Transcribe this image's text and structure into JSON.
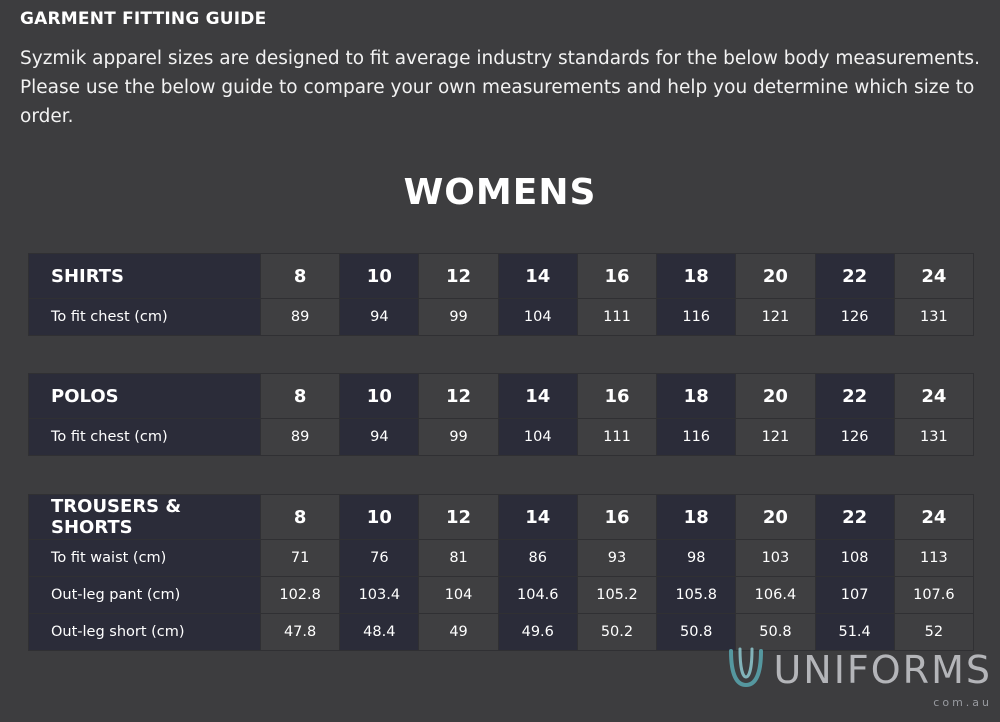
{
  "heading": "GARMENT FITTING GUIDE",
  "intro": "Syzmik apparel sizes are designed to fit average industry standards for the below body measurements. Please use the below guide to compare your own measurements and help you determine which size to order.",
  "section_title": "WOMENS",
  "tables": [
    {
      "title": "SHIRTS",
      "sizes": [
        "8",
        "10",
        "12",
        "14",
        "16",
        "18",
        "20",
        "22",
        "24"
      ],
      "rows": [
        {
          "label": "To fit chest (cm)",
          "values": [
            "89",
            "94",
            "99",
            "104",
            "111",
            "116",
            "121",
            "126",
            "131"
          ]
        }
      ]
    },
    {
      "title": "POLOS",
      "sizes": [
        "8",
        "10",
        "12",
        "14",
        "16",
        "18",
        "20",
        "22",
        "24"
      ],
      "rows": [
        {
          "label": "To fit chest (cm)",
          "values": [
            "89",
            "94",
            "99",
            "104",
            "111",
            "116",
            "121",
            "126",
            "131"
          ]
        }
      ]
    },
    {
      "title": "TROUSERS & SHORTS",
      "sizes": [
        "8",
        "10",
        "12",
        "14",
        "16",
        "18",
        "20",
        "22",
        "24"
      ],
      "rows": [
        {
          "label": "To fit waist (cm)",
          "values": [
            "71",
            "76",
            "81",
            "86",
            "93",
            "98",
            "103",
            "108",
            "113"
          ]
        },
        {
          "label": "Out-leg pant (cm)",
          "values": [
            "102.8",
            "103.4",
            "104",
            "104.6",
            "105.2",
            "105.8",
            "106.4",
            "107",
            "107.6"
          ]
        },
        {
          "label": "Out-leg short (cm)",
          "values": [
            "47.8",
            "48.4",
            "49",
            "49.6",
            "50.2",
            "50.8",
            "50.8",
            "51.4",
            "52"
          ]
        }
      ]
    }
  ],
  "watermark": {
    "name": "UNIFORMS",
    "domain": "com.au",
    "icon": "uniforms-logo-icon"
  },
  "colors": {
    "background": "#3d3d3f",
    "cell_dark": "#2b2c39",
    "cell_light": "#3f3f41",
    "text": "#ffffff"
  }
}
